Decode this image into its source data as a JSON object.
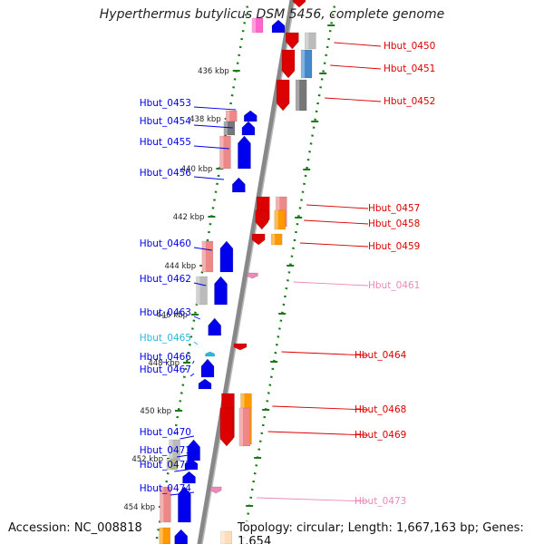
{
  "title": "Hyperthermus butylicus DSM 5456, complete genome",
  "footer": {
    "accession": "Accession: NC_008818",
    "summary": "Topology: circular; Length: 1,667,163 bp; Genes: 1,654"
  },
  "colors": {
    "forward_strand": "#0000ee",
    "reverse_strand": "#dd0000",
    "pseudo_forward": "#22bbdd",
    "pseudo_reverse": "#ee88bb",
    "backbone": "#888888",
    "tick": "#1a7a1a"
  },
  "kbp_marks": [
    "436 kbp",
    "438 kbp",
    "440 kbp",
    "442 kbp",
    "444 kbp",
    "446 kbp",
    "448 kbp",
    "450 kbp",
    "452 kbp",
    "454 kbp"
  ],
  "genes_forward": [
    {
      "label": "Hbut_0453"
    },
    {
      "label": "Hbut_0454"
    },
    {
      "label": "Hbut_0455"
    },
    {
      "label": "Hbut_0456"
    },
    {
      "label": "Hbut_0460"
    },
    {
      "label": "Hbut_0462"
    },
    {
      "label": "Hbut_0463"
    },
    {
      "label": "Hbut_0465"
    },
    {
      "label": "Hbut_0466"
    },
    {
      "label": "Hbut_0467"
    },
    {
      "label": "Hbut_0470"
    },
    {
      "label": "Hbut_0471"
    },
    {
      "label": "Hbut_0472"
    },
    {
      "label": "Hbut_0474"
    }
  ],
  "genes_reverse": [
    {
      "label": "Hbut_0450"
    },
    {
      "label": "Hbut_0451"
    },
    {
      "label": "Hbut_0452"
    },
    {
      "label": "Hbut_0457"
    },
    {
      "label": "Hbut_0458"
    },
    {
      "label": "Hbut_0459"
    },
    {
      "label": "Hbut_0461"
    },
    {
      "label": "Hbut_0464"
    },
    {
      "label": "Hbut_0468"
    },
    {
      "label": "Hbut_0469"
    },
    {
      "label": "Hbut_0473"
    }
  ]
}
